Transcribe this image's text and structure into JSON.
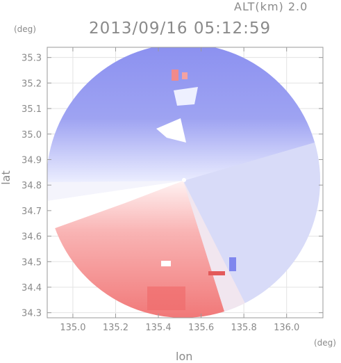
{
  "header": {
    "altitude": "ALT(km) 2.0",
    "timestamp": "2013/09/16 05:12:59"
  },
  "axes": {
    "y_unit": "(deg)",
    "x_unit": "(deg)",
    "y_label": "lat",
    "x_label": "lon"
  },
  "chart_data": {
    "type": "heatmap",
    "xlabel": "lon",
    "ylabel": "lat",
    "xlim": [
      134.88,
      136.17
    ],
    "ylim": [
      34.28,
      35.34
    ],
    "x_ticks": [
      "135.0",
      "135.2",
      "135.4",
      "135.6",
      "135.8",
      "136.0"
    ],
    "y_ticks": [
      "34.3",
      "34.4",
      "34.5",
      "34.6",
      "34.7",
      "34.8",
      "34.9",
      "35.0",
      "35.1",
      "35.2",
      "35.3"
    ],
    "grid": true,
    "radar_center": [
      135.52,
      34.82
    ],
    "colors": {
      "approaching": "#7f86ee",
      "receding": "#f07a7a",
      "neutral": "#eeeeff"
    }
  }
}
